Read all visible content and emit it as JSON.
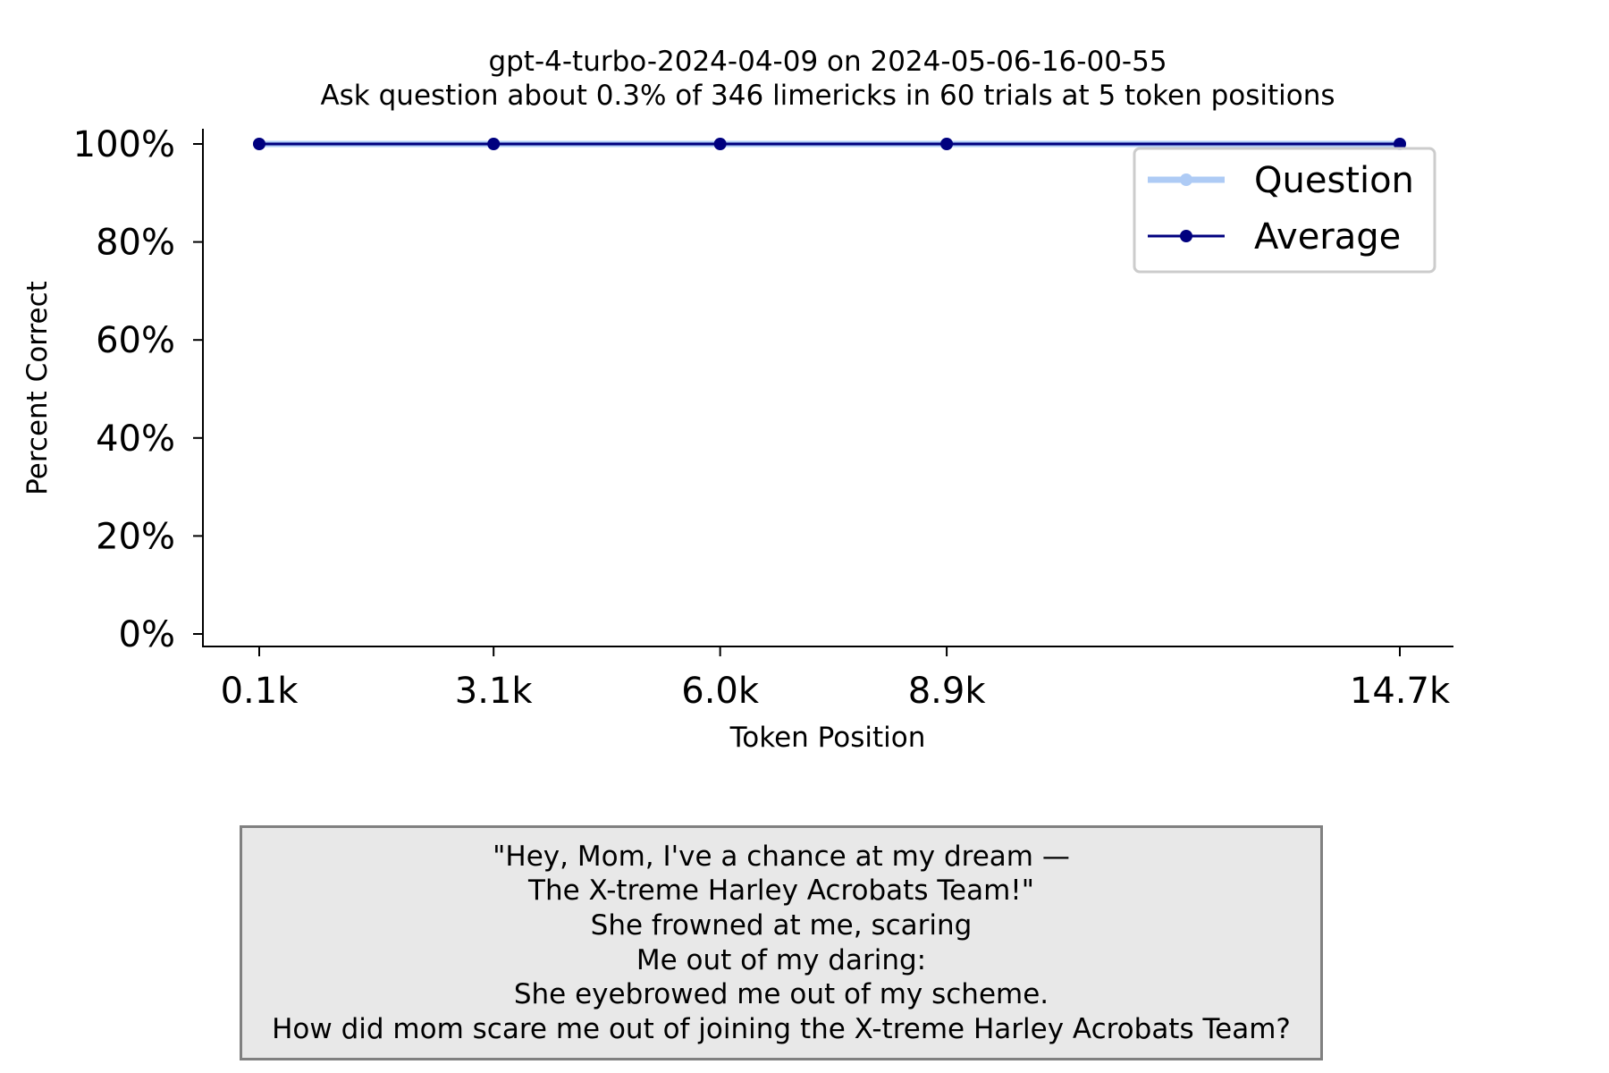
{
  "chart_data": {
    "type": "line",
    "title": "gpt-4-turbo-2024-04-09 on 2024-05-06-16-00-55",
    "subtitle": "Ask question about 0.3% of 346 limericks in 60 trials at 5 token positions",
    "xlabel": "Token Position",
    "ylabel": "Percent Correct",
    "x": [
      0.1,
      3.1,
      6.0,
      8.9,
      14.7
    ],
    "x_tick_labels": [
      "0.1k",
      "3.1k",
      "6.0k",
      "8.9k",
      "14.7k"
    ],
    "y_tick_values": [
      0,
      20,
      40,
      60,
      80,
      100
    ],
    "y_tick_labels": [
      "0%",
      "20%",
      "40%",
      "60%",
      "80%",
      "100%"
    ],
    "ylim": [
      0,
      100
    ],
    "grid": false,
    "legend_position": "top-right",
    "series": [
      {
        "name": "Question",
        "values": [
          100,
          100,
          100,
          100,
          100
        ],
        "color": "#aecbf5"
      },
      {
        "name": "Average",
        "values": [
          100,
          100,
          100,
          100,
          100
        ],
        "color": "#00007f"
      }
    ]
  },
  "question_box": {
    "lines": [
      "\"Hey, Mom, I've a chance at my dream —",
      "The X-treme Harley Acrobats Team!\"",
      "She frowned at me, scaring",
      "Me out of my daring:",
      "She eyebrowed me out of my scheme.",
      "How did mom scare me out of joining the X-treme Harley Acrobats Team?"
    ]
  }
}
